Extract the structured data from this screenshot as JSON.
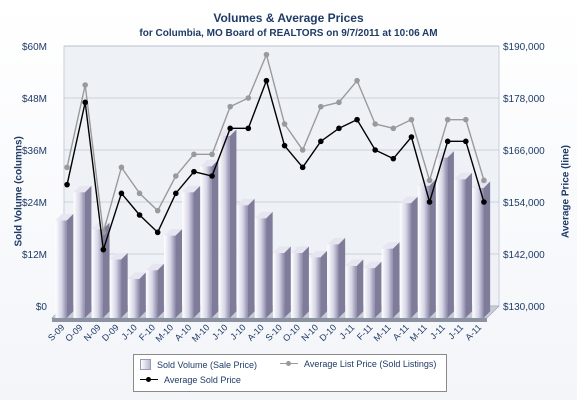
{
  "chart_data": {
    "type": "bar",
    "title": "Volumes & Average Prices",
    "subtitle": "for Columbia, MO Board of REALTORS on 9/7/2011 at 10:06 AM",
    "ylabel_left": "Sold Volume (columns)",
    "ylabel_right": "Average Price (line)",
    "categories": [
      "S-09",
      "O-09",
      "N-09",
      "D-09",
      "J-10",
      "F-10",
      "M-10",
      "A-10",
      "M-10",
      "J-10",
      "J-10",
      "A-10",
      "S-10",
      "O-10",
      "N-10",
      "D-10",
      "J-11",
      "F-11",
      "M-11",
      "A-11",
      "M-11",
      "J-11",
      "J-11",
      "A-11"
    ],
    "y_left": {
      "min": 0,
      "max": 60,
      "ticks": [
        "$0",
        "$12M",
        "$24M",
        "$36M",
        "$48M",
        "$60M"
      ]
    },
    "y_right": {
      "min": 130000,
      "max": 190000,
      "ticks": [
        "$130,000",
        "$142,000",
        "$154,000",
        "$166,000",
        "$178,000",
        "$190,000"
      ]
    },
    "series": [
      {
        "name": "Sold Volume (Sale Price)",
        "type": "bar",
        "axis": "left",
        "units": "millions USD",
        "values": [
          22.5,
          29,
          20.5,
          13.5,
          9,
          11,
          19,
          29,
          35,
          42,
          26,
          23,
          15,
          15,
          14,
          17,
          12,
          11.5,
          16,
          26.5,
          30.5,
          37,
          32,
          30
        ]
      },
      {
        "name": "Average List Price (Sold Listings)",
        "type": "line",
        "axis": "right",
        "color": "#9a9a9a",
        "values": [
          162,
          181,
          147,
          162,
          156,
          152,
          160,
          165,
          165,
          176,
          178,
          188,
          172,
          166,
          176,
          177,
          182,
          172,
          171,
          173,
          159,
          173,
          173,
          159
        ]
      },
      {
        "name": "Average Sold Price",
        "type": "line",
        "axis": "right",
        "color": "#000000",
        "values": [
          158,
          177,
          143,
          156,
          151,
          147,
          156,
          161,
          160,
          171,
          171,
          182,
          167,
          162,
          168,
          171,
          173,
          166,
          164,
          169,
          154,
          168,
          168,
          154
        ]
      }
    ],
    "legend": {
      "position": "bottom"
    },
    "grid": true
  }
}
